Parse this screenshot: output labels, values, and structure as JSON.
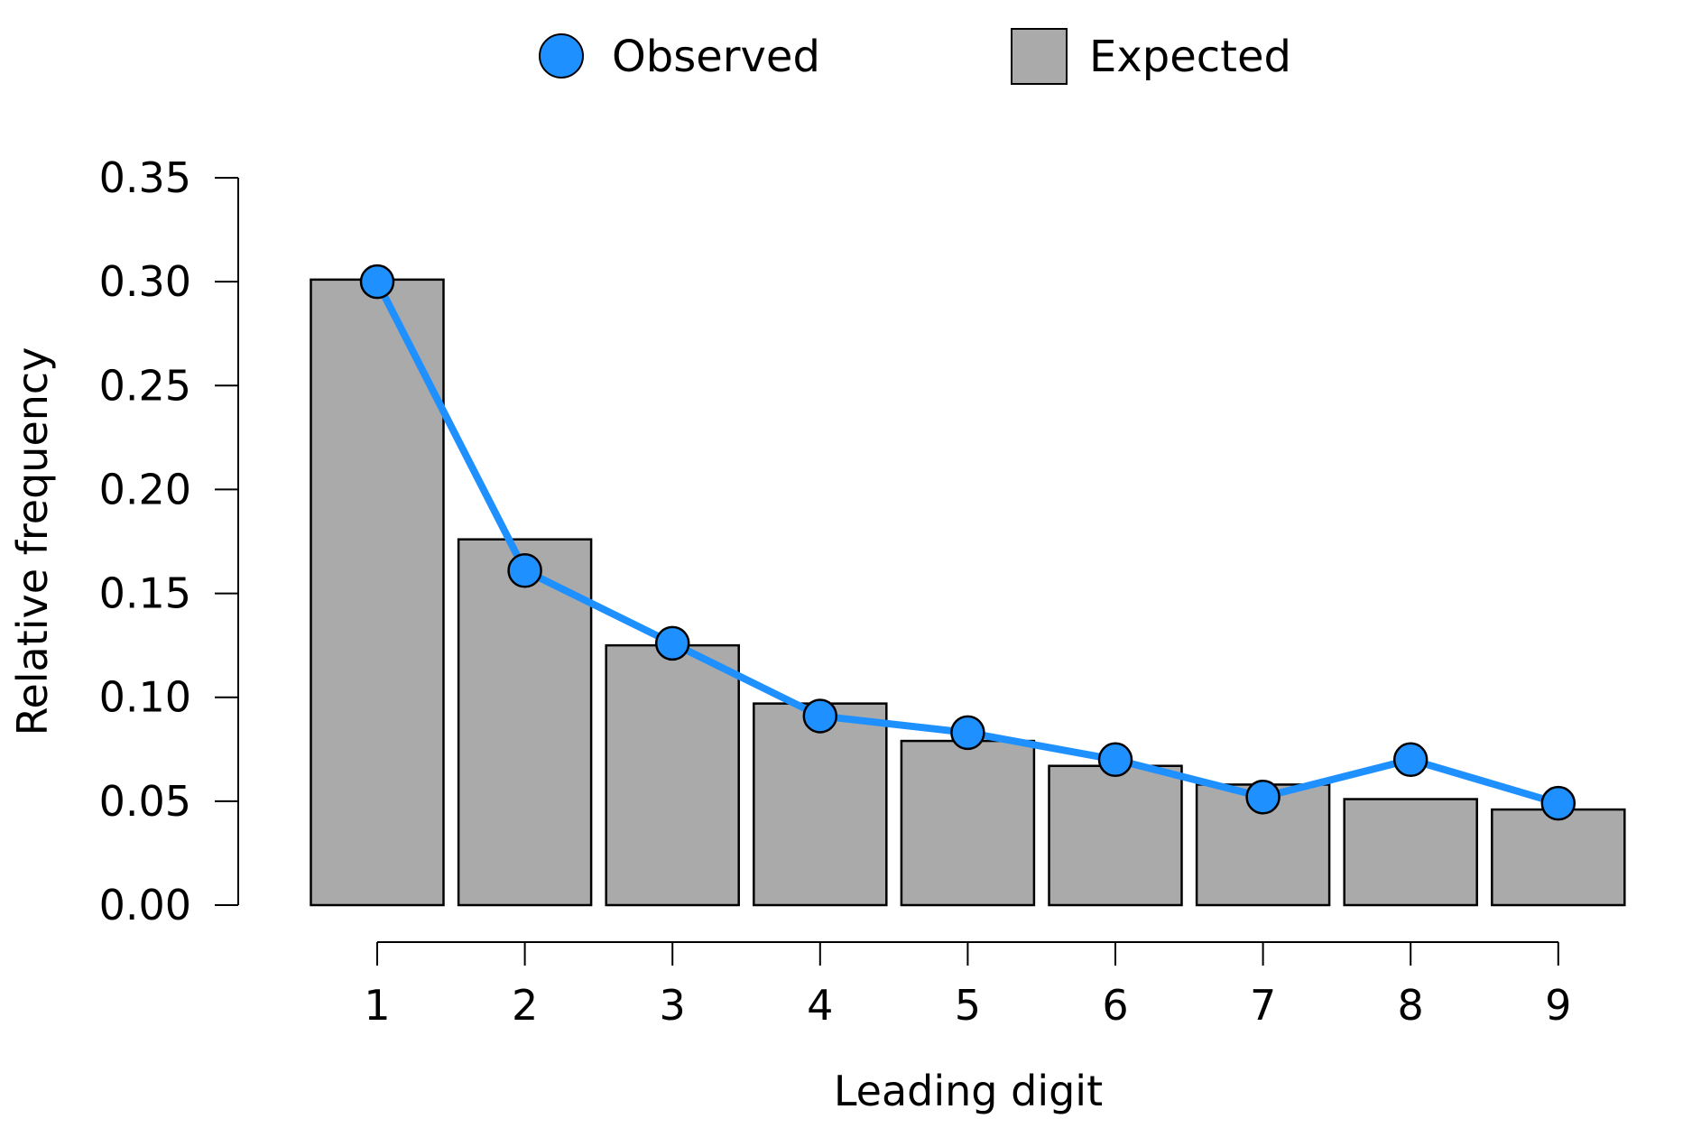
{
  "chart_data": {
    "type": "bar",
    "title": "",
    "xlabel": "Leading digit",
    "ylabel": "Relative frequency",
    "categories": [
      "1",
      "2",
      "3",
      "4",
      "5",
      "6",
      "7",
      "8",
      "9"
    ],
    "series": [
      {
        "name": "Expected",
        "kind": "bar",
        "color": "#aaaaaa",
        "values": [
          0.301,
          0.176,
          0.125,
          0.097,
          0.079,
          0.067,
          0.058,
          0.051,
          0.046
        ]
      },
      {
        "name": "Observed",
        "kind": "line",
        "color": "#1e90ff",
        "values": [
          0.3,
          0.161,
          0.126,
          0.091,
          0.083,
          0.07,
          0.052,
          0.07,
          0.049
        ]
      }
    ],
    "ylim": [
      0,
      0.35
    ],
    "yticks": [
      "0.00",
      "0.05",
      "0.10",
      "0.15",
      "0.20",
      "0.25",
      "0.30",
      "0.35"
    ],
    "grid": false,
    "legend_position": "top-center"
  }
}
